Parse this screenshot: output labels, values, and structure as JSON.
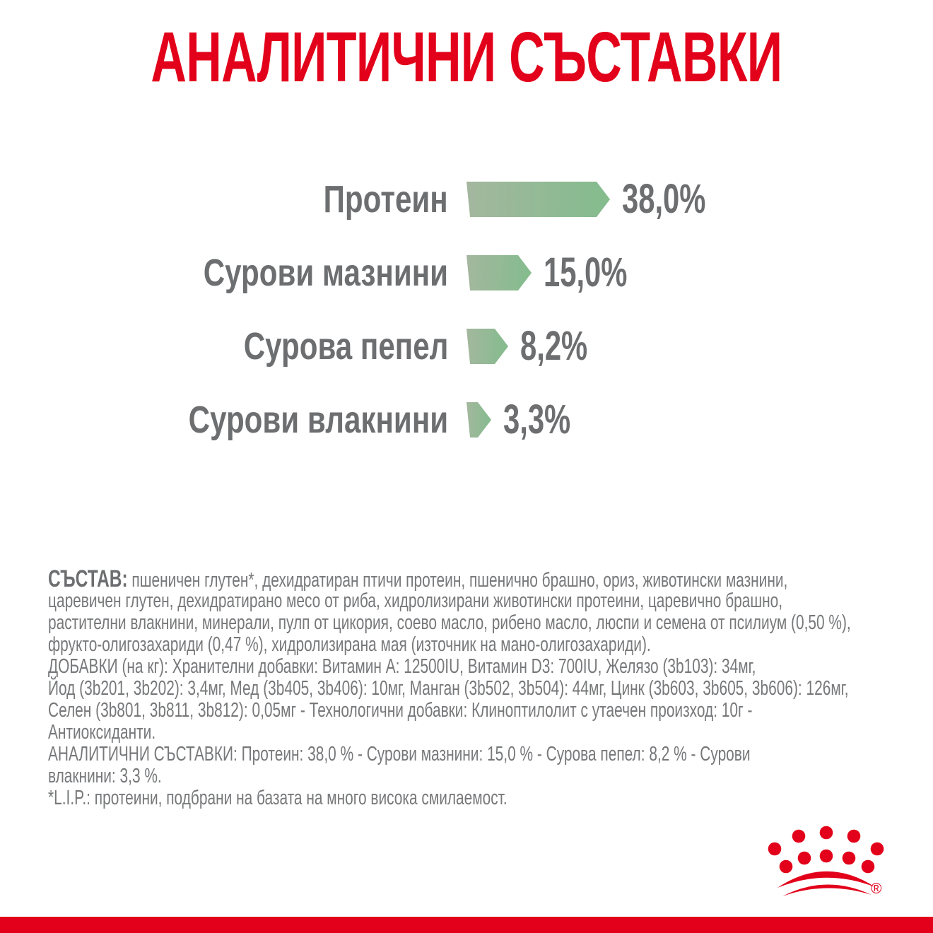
{
  "page": {
    "title": "АНАЛИТИЧНИ СЪСТАВКИ"
  },
  "colors": {
    "brand_red": "#e2001a",
    "bar_gradient_left": "#a4b79e",
    "bar_gradient_right": "#83bc8d",
    "label_gray": "#6d6e70",
    "body_gray": "#77787a"
  },
  "chart_data": {
    "type": "bar",
    "orientation": "horizontal",
    "title": "АНАЛИТИЧНИ СЪСТАВКИ",
    "categories": [
      "Протеин",
      "Сурови мазнини",
      "Сурова пепел",
      "Сурови влакнини"
    ],
    "values": [
      38.0,
      15.0,
      8.2,
      3.3
    ],
    "value_labels": [
      "38,0%",
      "15,0%",
      "8,2%",
      "3,3%"
    ],
    "unit": "%",
    "xlim": [
      0,
      38
    ],
    "grid": false,
    "legend": false,
    "bar_style": "green gradient arrow bars, value labels at bar tips"
  },
  "composition": {
    "lines": [
      {
        "bold": "СЪСТАВ:",
        "text": " пшеничен глутен*, дехидратиран птичи протеин, пшенично брашно, ориз, животински мазнини,"
      },
      {
        "bold": "",
        "text": "царевичен глутен, дехидратирано месо от риба, хидролизирани животински протеини, царевично брашно,"
      },
      {
        "bold": "",
        "text": "растителни влакнини, минерали, пулп от цикория, соево масло, рибено масло, люспи и семена от псилиум (0,50 %),"
      },
      {
        "bold": "",
        "text": "фрукто-олигозахариди (0,47 %), хидролизирана мая (източник на мано-олигозахариди)."
      },
      {
        "bold": "",
        "text": "ДОБАВКИ (на кг): Хранителни добавки: Витамин A: 12500IU, Витамин D3: 700IU, Желязо (3b103): 34мг,"
      },
      {
        "bold": "",
        "text": "Йод (3b201, 3b202): 3,4мг, Мед (3b405, 3b406): 10мг, Манган (3b502, 3b504): 44мг, Цинк (3b603, 3b605, 3b606): 126мг,"
      },
      {
        "bold": "",
        "text": "Селен (3b801, 3b811, 3b812): 0,05мг - Технологични добавки: Клиноптилолит с утаечен произход: 10г -"
      },
      {
        "bold": "",
        "text": "Антиоксиданти."
      },
      {
        "bold": "",
        "text": "АНАЛИТИЧНИ СЪСТАВКИ: Протеин: 38,0 % - Сурови мазнини: 15,0 % - Сурова пепел: 8,2 % - Сурови"
      },
      {
        "bold": "",
        "text": "влакнини: 3,3 %."
      },
      {
        "bold": "",
        "text": "*L.I.P.: протеини, подбрани на базата на много висока смилаемост."
      }
    ]
  },
  "footer": {
    "logo": "royal-canin-crown",
    "registered_mark": "®"
  }
}
